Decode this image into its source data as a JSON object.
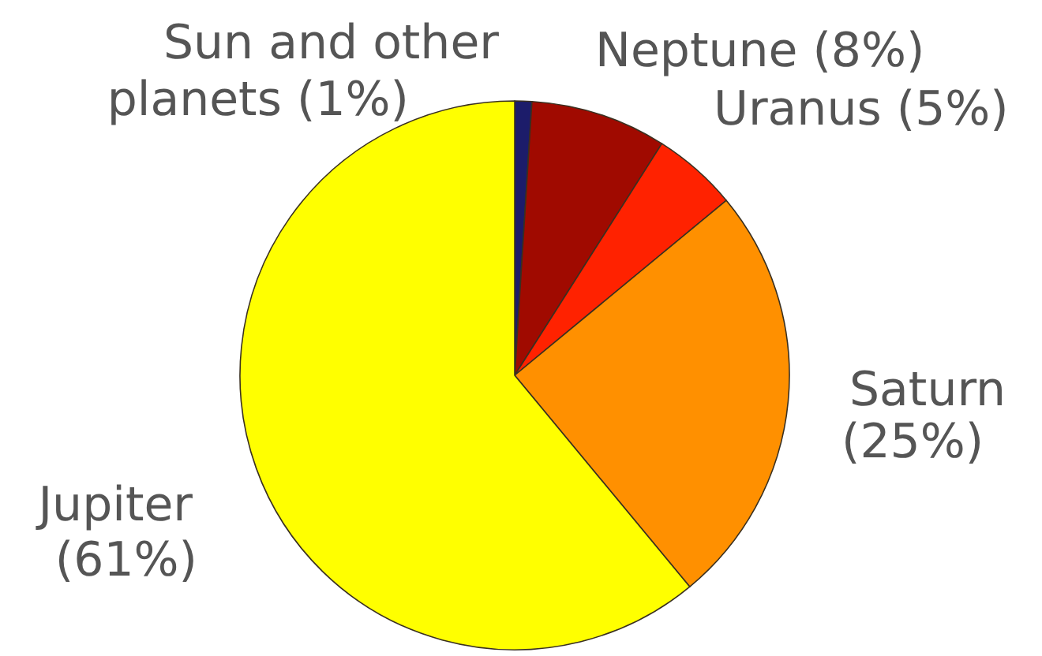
{
  "chart_data": {
    "type": "pie",
    "categories": [
      "Sun and other planets",
      "Neptune",
      "Uranus",
      "Saturn",
      "Jupiter"
    ],
    "values": [
      1,
      8,
      5,
      25,
      61
    ],
    "colors": [
      "#1c1c6a",
      "#a00a00",
      "#ff2200",
      "#ff9000",
      "#ffff00"
    ],
    "value_labels": [
      "(1%)",
      "(8%)",
      "(5%)",
      "(25%)",
      "(61%)"
    ]
  }
}
